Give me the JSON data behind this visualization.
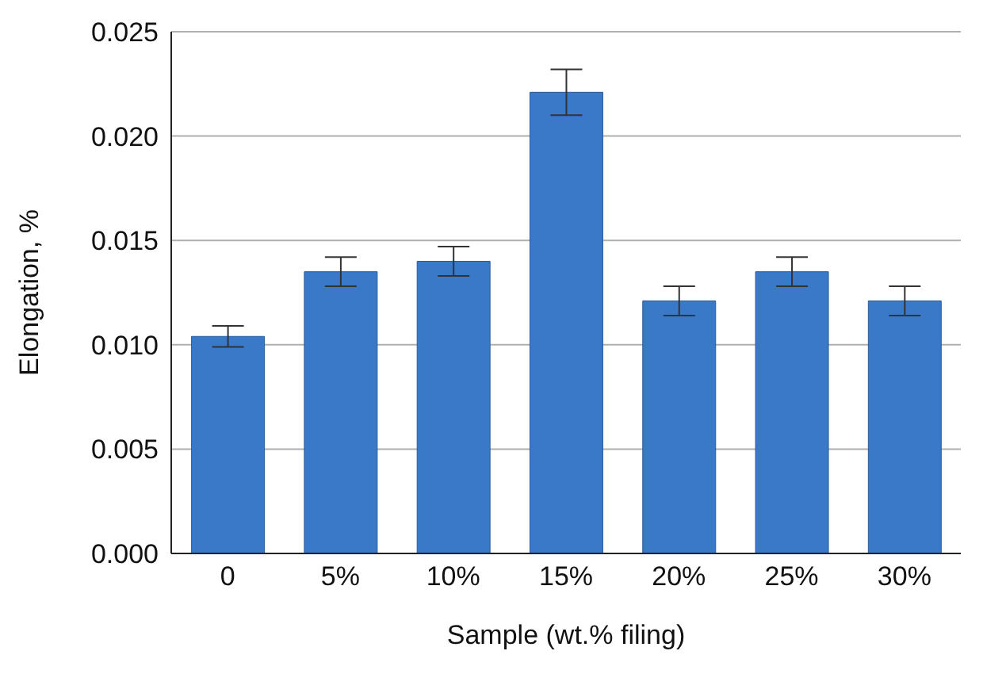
{
  "chart_data": {
    "type": "bar",
    "xlabel": "Sample (wt.% filing)",
    "ylabel": "Elongation, %",
    "categories": [
      "0",
      "5%",
      "10%",
      "15%",
      "20%",
      "25%",
      "30%"
    ],
    "values": [
      0.0104,
      0.0135,
      0.014,
      0.0221,
      0.0121,
      0.0135,
      0.0121
    ],
    "errors": [
      0.0005,
      0.0007,
      0.0007,
      0.0011,
      0.0007,
      0.0007,
      0.0007
    ],
    "color": "#3a78c8",
    "ylim": [
      0,
      0.025
    ],
    "yticks": [
      {
        "value": 0,
        "label": "0.000"
      },
      {
        "value": 0.005,
        "label": "0.005"
      },
      {
        "value": 0.01,
        "label": "0.010"
      },
      {
        "value": 0.015,
        "label": "0.015"
      },
      {
        "value": 0.02,
        "label": "0.020"
      },
      {
        "value": 0.025,
        "label": "0.025"
      }
    ],
    "grid": "y"
  }
}
